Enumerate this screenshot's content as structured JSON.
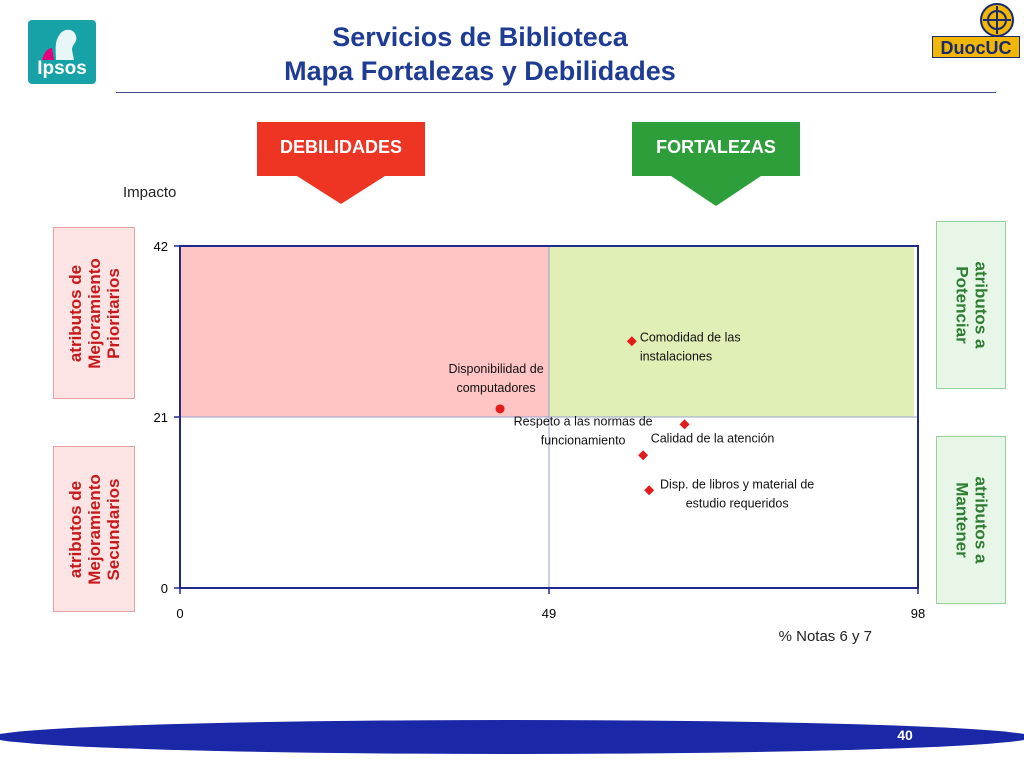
{
  "header": {
    "title_line1": "Servicios de Biblioteca",
    "title_line2": "Mapa Fortalezas y Debilidades",
    "logo_left_text": "Ipsos",
    "logo_right_text": "DuocUC"
  },
  "arrows": {
    "left_label": "DEBILIDADES",
    "right_label": "FORTALEZAS"
  },
  "side_labels": {
    "top_left": [
      "atributos de",
      "Mejoramiento",
      "Prioritarios"
    ],
    "bottom_left": [
      "atributos de",
      "Mejoramiento",
      "Secundarios"
    ],
    "top_right": [
      "atributos a",
      "Potenciar"
    ],
    "bottom_right": [
      "atributos a",
      "Mantener"
    ]
  },
  "colors": {
    "title": "#1f3c94",
    "weakness_zone": "#ffc5c5",
    "strength_zone": "#e0efb5",
    "marker": "#e31b1b",
    "axis": "#1f2a8c",
    "footer_band": "#1a28a8"
  },
  "chart_data": {
    "type": "scatter",
    "xlabel": "% Notas 6 y 7",
    "ylabel": "Impacto",
    "xlim": [
      0,
      98
    ],
    "ylim": [
      0,
      42
    ],
    "xticks": [
      0,
      49,
      98
    ],
    "yticks": [
      0,
      21,
      42
    ],
    "quadrant_x": 49,
    "quadrant_y": 21,
    "points": [
      {
        "label_lines": [
          "Comodidad de las",
          "instalaciones"
        ],
        "x": 60,
        "y": 30.3,
        "shape": "diamond"
      },
      {
        "label_lines": [
          "Disponibilidad de",
          "computadores"
        ],
        "x": 42.5,
        "y": 22,
        "shape": "circle"
      },
      {
        "label_lines": [
          "Calidad de la atención"
        ],
        "x": 67,
        "y": 20.1,
        "shape": "diamond"
      },
      {
        "label_lines": [
          "Respeto a las normas de",
          "funcionamiento"
        ],
        "x": 61.5,
        "y": 16.3,
        "shape": "diamond"
      },
      {
        "label_lines": [
          "Disp. de libros y material de",
          "estudio requeridos"
        ],
        "x": 62.3,
        "y": 12,
        "shape": "diamond"
      }
    ]
  },
  "footer": {
    "page_number": "40"
  }
}
